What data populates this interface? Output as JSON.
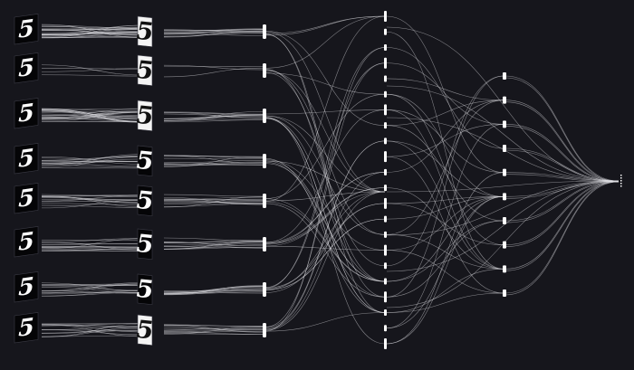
{
  "colors": {
    "background": "#16161c",
    "link": "#e6e6ea",
    "node": "#ffffff",
    "digit_dark": "#ffffff",
    "digit_light": "#111111"
  },
  "input_rows": [
    {
      "glyph": "5",
      "tile_style": "dark"
    },
    {
      "glyph": "5",
      "tile_style": "dark"
    },
    {
      "glyph": "5",
      "tile_style": "dark"
    },
    {
      "glyph": "5",
      "tile_style": "dark"
    },
    {
      "glyph": "5",
      "tile_style": "dark"
    },
    {
      "glyph": "5",
      "tile_style": "dark"
    },
    {
      "glyph": "5",
      "tile_style": "dark"
    },
    {
      "glyph": "5",
      "tile_style": "dark"
    }
  ],
  "feature_maps": [
    {
      "glyph": "5",
      "tile_style": "light"
    },
    {
      "glyph": "5",
      "tile_style": "light"
    },
    {
      "glyph": "5",
      "tile_style": "light"
    },
    {
      "glyph": "5",
      "tile_style": "dark"
    },
    {
      "glyph": "5",
      "tile_style": "dark"
    },
    {
      "glyph": "5",
      "tile_style": "dark"
    },
    {
      "glyph": "5",
      "tile_style": "dark"
    },
    {
      "glyph": "5",
      "tile_style": "light"
    }
  ],
  "layer_sizes": [
    8,
    22,
    10,
    1
  ]
}
